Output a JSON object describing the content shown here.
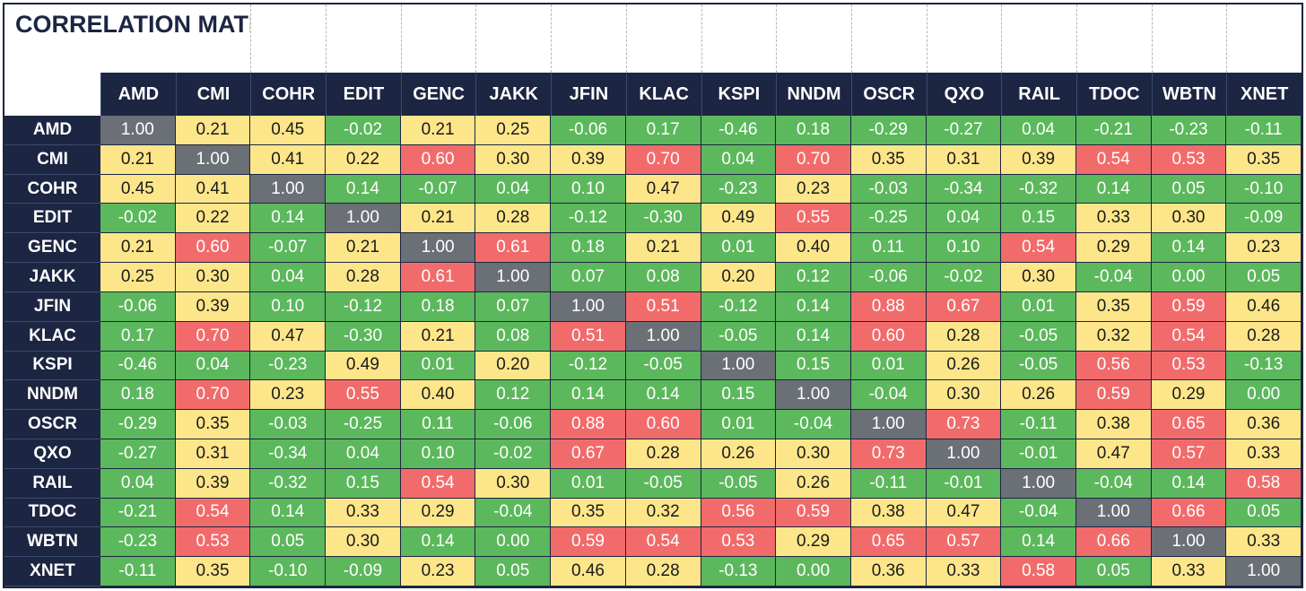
{
  "chart_data": {
    "type": "heatmap",
    "title": "CORRELATION MATRIX",
    "labels": [
      "AMD",
      "CMI",
      "COHR",
      "EDIT",
      "GENC",
      "JAKK",
      "JFIN",
      "KLAC",
      "KSPI",
      "NNDM",
      "OSCR",
      "QXO",
      "RAIL",
      "TDOC",
      "WBTN",
      "XNET"
    ],
    "matrix": [
      [
        1.0,
        0.21,
        0.45,
        -0.02,
        0.21,
        0.25,
        -0.06,
        0.17,
        -0.46,
        0.18,
        -0.29,
        -0.27,
        0.04,
        -0.21,
        -0.23,
        -0.11
      ],
      [
        0.21,
        1.0,
        0.41,
        0.22,
        0.6,
        0.3,
        0.39,
        0.7,
        0.04,
        0.7,
        0.35,
        0.31,
        0.39,
        0.54,
        0.53,
        0.35
      ],
      [
        0.45,
        0.41,
        1.0,
        0.14,
        -0.07,
        0.04,
        0.1,
        0.47,
        -0.23,
        0.23,
        -0.03,
        -0.34,
        -0.32,
        0.14,
        0.05,
        -0.1
      ],
      [
        -0.02,
        0.22,
        0.14,
        1.0,
        0.21,
        0.28,
        -0.12,
        -0.3,
        0.49,
        0.55,
        -0.25,
        0.04,
        0.15,
        0.33,
        0.3,
        -0.09
      ],
      [
        0.21,
        0.6,
        -0.07,
        0.21,
        1.0,
        0.61,
        0.18,
        0.21,
        0.01,
        0.4,
        0.11,
        0.1,
        0.54,
        0.29,
        0.14,
        0.23
      ],
      [
        0.25,
        0.3,
        0.04,
        0.28,
        0.61,
        1.0,
        0.07,
        0.08,
        0.2,
        0.12,
        -0.06,
        -0.02,
        0.3,
        -0.04,
        0.0,
        0.05
      ],
      [
        -0.06,
        0.39,
        0.1,
        -0.12,
        0.18,
        0.07,
        1.0,
        0.51,
        -0.12,
        0.14,
        0.88,
        0.67,
        0.01,
        0.35,
        0.59,
        0.46
      ],
      [
        0.17,
        0.7,
        0.47,
        -0.3,
        0.21,
        0.08,
        0.51,
        1.0,
        -0.05,
        0.14,
        0.6,
        0.28,
        -0.05,
        0.32,
        0.54,
        0.28
      ],
      [
        -0.46,
        0.04,
        -0.23,
        0.49,
        0.01,
        0.2,
        -0.12,
        -0.05,
        1.0,
        0.15,
        0.01,
        0.26,
        -0.05,
        0.56,
        0.53,
        -0.13
      ],
      [
        0.18,
        0.7,
        0.23,
        0.55,
        0.4,
        0.12,
        0.14,
        0.14,
        0.15,
        1.0,
        -0.04,
        0.3,
        0.26,
        0.59,
        0.29,
        0.0
      ],
      [
        -0.29,
        0.35,
        -0.03,
        -0.25,
        0.11,
        -0.06,
        0.88,
        0.6,
        0.01,
        -0.04,
        1.0,
        0.73,
        -0.11,
        0.38,
        0.65,
        0.36
      ],
      [
        -0.27,
        0.31,
        -0.34,
        0.04,
        0.1,
        -0.02,
        0.67,
        0.28,
        0.26,
        0.3,
        0.73,
        1.0,
        -0.01,
        0.47,
        0.57,
        0.33
      ],
      [
        0.04,
        0.39,
        -0.32,
        0.15,
        0.54,
        0.3,
        0.01,
        -0.05,
        -0.05,
        0.26,
        -0.11,
        -0.01,
        1.0,
        -0.04,
        0.14,
        0.58
      ],
      [
        -0.21,
        0.54,
        0.14,
        0.33,
        0.29,
        -0.04,
        0.35,
        0.32,
        0.56,
        0.59,
        0.38,
        0.47,
        -0.04,
        1.0,
        0.66,
        0.05
      ],
      [
        -0.23,
        0.53,
        0.05,
        0.3,
        0.14,
        0.0,
        0.59,
        0.54,
        0.53,
        0.29,
        0.65,
        0.57,
        0.14,
        0.66,
        1.0,
        0.33
      ],
      [
        -0.11,
        0.35,
        -0.1,
        -0.09,
        0.23,
        0.05,
        0.46,
        0.28,
        -0.13,
        0.0,
        0.36,
        0.33,
        0.58,
        0.05,
        0.33,
        1.0
      ]
    ],
    "colors": {
      "header": "#1c2541",
      "green": "#5cb85c",
      "yellow": "#fde68a",
      "red": "#f26b6b",
      "diagonal": "#6b6f76"
    }
  }
}
